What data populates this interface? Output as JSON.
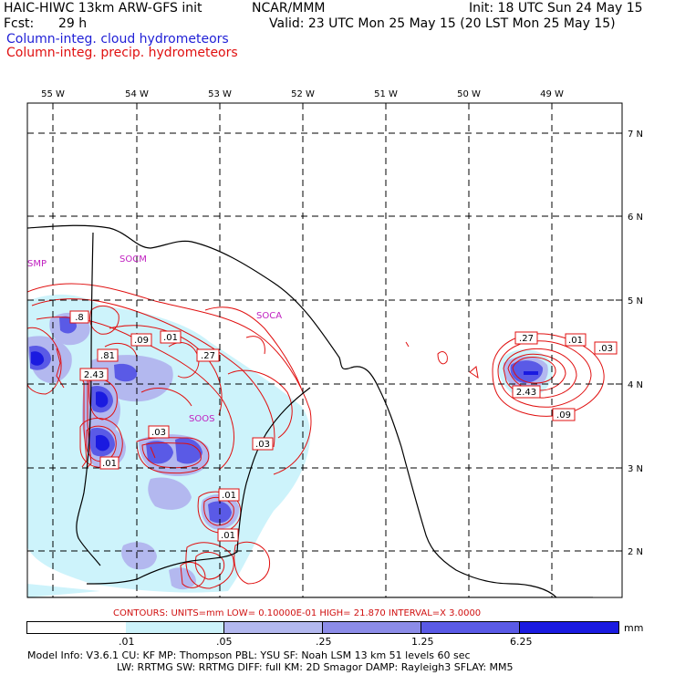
{
  "header": {
    "model": "HAIC-HIWC 13km ARW-GFS init",
    "org": "NCAR/MMM",
    "init": "Init: 18 UTC Sun 24 May 15",
    "fcst_label": "Fcst:",
    "fcst_value": "29 h",
    "valid": "Valid: 23 UTC Mon 25 May 15 (20 LST Mon 25 May 15)",
    "field_cloud": "Column-integ. cloud hydrometeors",
    "field_precip": "Column-integ. precip. hydrometeors"
  },
  "map": {
    "lon_labels": [
      "55 W",
      "54 W",
      "53 W",
      "52 W",
      "51 W",
      "50 W",
      "49 W"
    ],
    "lat_labels": [
      "7 N",
      "6 N",
      "5 N",
      "4 N",
      "3 N",
      "2 N"
    ],
    "place_labels": [
      "SMP",
      "SOCM",
      "SOCA",
      "SOOS"
    ],
    "contour_labels": [
      ".8",
      ".09",
      ".01",
      ".81",
      ".27",
      "2.43",
      ".03",
      ".01",
      ".03",
      ".01",
      ".01",
      ".27",
      ".01",
      ".03",
      "2.43",
      ".09"
    ],
    "colors": {
      "coast": "#000000",
      "grid": "#000000",
      "contour": "#e01010",
      "place": "#c020c0"
    }
  },
  "contours_info": "CONTOURS:  UNITS=mm  LOW= 0.10000E-01  HIGH=  21.870       INTERVAL=X  3.0000",
  "colorbar": {
    "thresholds": [
      ".01",
      ".05",
      ".25",
      "1.25",
      "6.25"
    ],
    "units": "mm",
    "colors": [
      "#ffffff",
      "#cdf3fb",
      "#b3b8ef",
      "#8c8ce8",
      "#5a5ae6",
      "#1a1ae0"
    ]
  },
  "model_info": {
    "line1": "Model Info: V3.6.1    CU: KF       MP: Thompson      PBL: YSU       SF: Noah LSM     13 km    51 levels   60 sec",
    "line2": "LW: RRTMG   SW: RRTMG   DIFF: full    KM: 2D Smagor  DAMP: Rayleigh3   SFLAY: MM5"
  }
}
